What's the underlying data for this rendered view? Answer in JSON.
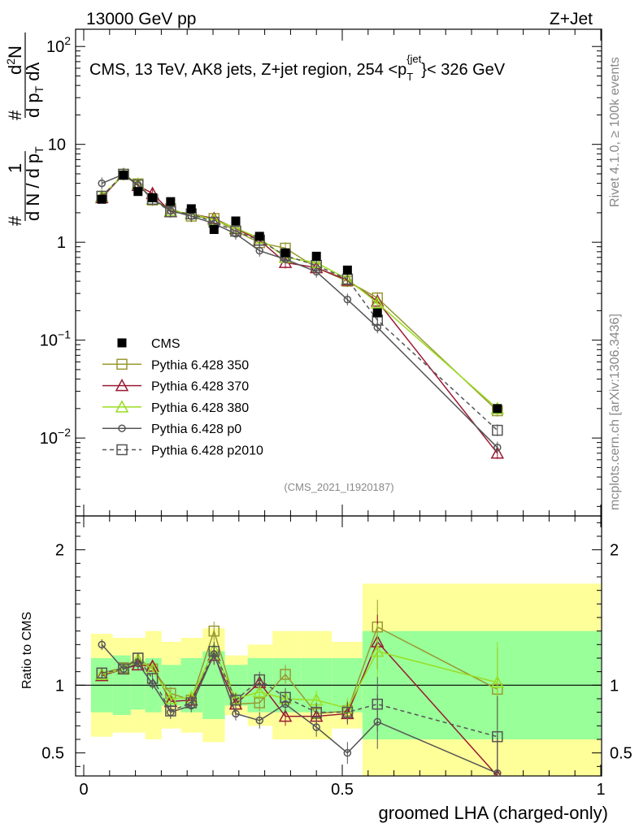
{
  "header": {
    "left": "13000 GeV pp",
    "right": "Z+Jet"
  },
  "plot_title": {
    "main": "CMS, 13 TeV, AK8 jets, Z+jet region, 254 <p",
    "sub": "T",
    "sup": "{jet",
    "close": "}< 326 GeV"
  },
  "side_labels": {
    "rivet": "Rivet 4.1.0, ≥ 100k events",
    "mcplots": "mcplots.cern.ch [arXiv:1306.3436]"
  },
  "analysis_id": "(CMS_2021_I1920187)",
  "ylabel_top": {
    "hash1": "#",
    "one": "1",
    "den": "d N / d p",
    "den_sub": "T",
    "hash2": "#",
    "num2": "d",
    "sup2": "2",
    "num2b": "N",
    "den2": "d p",
    "den2_sub": "T",
    "den2_tail": " dλ"
  },
  "ylabel_bottom": "Ratio to CMS",
  "xlabel": "groomed LHA (charged-only)",
  "top_ticks": [
    {
      "value": 100,
      "mant": "10",
      "exp": "2"
    },
    {
      "value": 10,
      "mant": "10",
      "exp": ""
    },
    {
      "value": 1,
      "mant": "1",
      "exp": ""
    },
    {
      "value": 0.1,
      "mant": "10",
      "exp": "−1"
    },
    {
      "value": 0.01,
      "mant": "10",
      "exp": "−2"
    }
  ],
  "ratio_ticks": [
    {
      "value": 2,
      "label": "2"
    },
    {
      "value": 1,
      "label": "1"
    },
    {
      "value": 0.5,
      "label": "0.5"
    }
  ],
  "x_ticks": [
    {
      "value": 0,
      "label": "0"
    },
    {
      "value": 0.5,
      "label": "0.5"
    },
    {
      "value": 1,
      "label": "1"
    }
  ],
  "legend": [
    {
      "key": "cms",
      "label": "CMS"
    },
    {
      "key": "p350",
      "label": "Pythia 6.428 350"
    },
    {
      "key": "p370",
      "label": "Pythia 6.428 370"
    },
    {
      "key": "p380",
      "label": "Pythia 6.428 380"
    },
    {
      "key": "p0",
      "label": "Pythia 6.428 p0"
    },
    {
      "key": "p2010",
      "label": "Pythia 6.428 p2010"
    }
  ],
  "chart_data": {
    "type": "line",
    "title": "CMS, 13 TeV, AK8 jets, Z+jet region, 254 < pT jet < 326 GeV",
    "xlabel": "groomed LHA (charged-only)",
    "ylabel": "1/dN/dpT d2N/dpT dlambda",
    "ratio_ylabel": "Ratio to CMS",
    "xlim": [
      0,
      1
    ],
    "ylim": [
      0.0016,
      150
    ],
    "ylog": true,
    "ratio_ylim": [
      0.33,
      2.25
    ],
    "x": [
      0.035,
      0.077,
      0.105,
      0.133,
      0.168,
      0.208,
      0.252,
      0.294,
      0.34,
      0.39,
      0.45,
      0.51,
      0.568,
      0.8
    ],
    "cms": [
      2.75,
      4.85,
      3.3,
      2.85,
      2.6,
      2.2,
      1.35,
      1.65,
      1.15,
      0.78,
      0.72,
      0.52,
      0.19,
      0.02
    ],
    "cms_band_stat": [
      0.2,
      0.22,
      0.18,
      0.2,
      0.15,
      0.2,
      0.25,
      0.15,
      0.2,
      0.2,
      0.2,
      0.2,
      0.4,
      0.4
    ],
    "cms_band_total": [
      0.38,
      0.35,
      0.35,
      0.4,
      0.32,
      0.35,
      0.42,
      0.22,
      0.3,
      0.4,
      0.4,
      0.32,
      0.75,
      0.75
    ],
    "series": [
      {
        "key": "p350",
        "name": "Pythia 6.428 350",
        "color": "#999933",
        "marker": "square",
        "values": [
          2.95,
          4.95,
          3.95,
          2.7,
          2.2,
          1.85,
          1.75,
          1.3,
          0.99,
          0.87,
          0.55,
          0.4,
          0.27,
          0.019
        ],
        "ratio": [
          1.09,
          1.13,
          1.2,
          1.12,
          0.94,
          0.89,
          1.4,
          0.86,
          0.87,
          1.08,
          0.79,
          0.81,
          1.43,
          0.97
        ],
        "ratio_err": [
          0.04,
          0.04,
          0.04,
          0.04,
          0.05,
          0.05,
          0.07,
          0.05,
          0.06,
          0.07,
          0.07,
          0.08,
          0.2,
          0.3
        ]
      },
      {
        "key": "p370",
        "name": "Pythia 6.428 370",
        "color": "#991a33",
        "marker": "triangle",
        "values": [
          2.85,
          4.95,
          3.8,
          3.15,
          2.05,
          1.95,
          1.75,
          1.38,
          1.05,
          0.62,
          0.55,
          0.41,
          0.25,
          0.007
        ],
        "ratio": [
          1.07,
          1.12,
          1.15,
          1.14,
          0.88,
          0.89,
          1.22,
          0.86,
          1.02,
          0.77,
          0.77,
          0.79,
          1.32,
          0.33
        ],
        "ratio_err": [
          0.04,
          0.04,
          0.04,
          0.04,
          0.05,
          0.05,
          0.07,
          0.05,
          0.06,
          0.07,
          0.07,
          0.08,
          0.2,
          0.3
        ]
      },
      {
        "key": "p380",
        "name": "Pythia 6.428 380",
        "color": "#99dd22",
        "marker": "triangle",
        "values": [
          2.95,
          4.95,
          3.95,
          2.75,
          2.1,
          1.95,
          1.7,
          1.4,
          1.1,
          0.7,
          0.62,
          0.42,
          0.24,
          0.02
        ],
        "ratio": [
          1.08,
          1.12,
          1.19,
          1.12,
          0.9,
          0.91,
          1.26,
          0.9,
          0.95,
          0.9,
          0.89,
          0.83,
          1.25,
          1.02
        ],
        "ratio_err": [
          0.04,
          0.04,
          0.04,
          0.04,
          0.05,
          0.05,
          0.07,
          0.05,
          0.06,
          0.07,
          0.07,
          0.08,
          0.2,
          0.3
        ]
      },
      {
        "key": "p0",
        "name": "Pythia 6.428 p0",
        "color": "#555555",
        "marker": "circle",
        "values": [
          4.0,
          4.95,
          3.85,
          2.8,
          2.1,
          1.85,
          1.55,
          1.22,
          0.82,
          0.67,
          0.5,
          0.26,
          0.135,
          0.008
        ],
        "ratio": [
          1.3,
          1.12,
          1.16,
          1.01,
          0.8,
          0.85,
          1.23,
          0.79,
          0.74,
          0.86,
          0.69,
          0.5,
          0.73,
          0.35
        ],
        "ratio_err": [
          0.04,
          0.04,
          0.04,
          0.04,
          0.05,
          0.05,
          0.07,
          0.05,
          0.06,
          0.07,
          0.07,
          0.08,
          0.2,
          0.3
        ]
      },
      {
        "key": "p2010",
        "name": "Pythia 6.428 p2010",
        "color": "#555555",
        "marker": "square",
        "dashed": true,
        "values": [
          2.95,
          4.95,
          3.85,
          2.75,
          2.05,
          1.95,
          1.6,
          1.3,
          1.05,
          0.73,
          0.58,
          0.42,
          0.16,
          0.012
        ],
        "ratio": [
          1.09,
          1.12,
          1.2,
          1.05,
          0.81,
          0.87,
          1.25,
          0.89,
          1.04,
          0.91,
          0.8,
          0.8,
          0.86,
          0.62
        ],
        "ratio_err": [
          0.04,
          0.04,
          0.04,
          0.04,
          0.05,
          0.05,
          0.07,
          0.05,
          0.06,
          0.07,
          0.07,
          0.08,
          0.2,
          0.3
        ]
      }
    ]
  }
}
